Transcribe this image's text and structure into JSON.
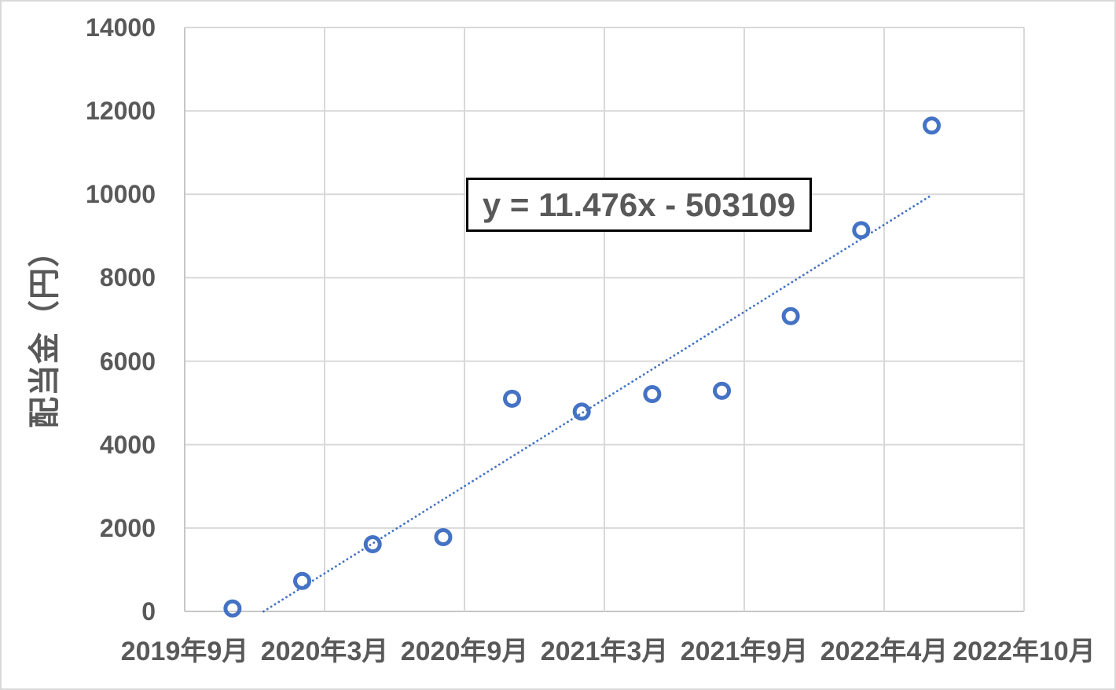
{
  "chart_data": {
    "type": "scatter",
    "title": "",
    "xlabel": "",
    "ylabel": "配当金（円）",
    "ylim": [
      0,
      14000
    ],
    "y_ticks": [
      0,
      2000,
      4000,
      6000,
      8000,
      10000,
      12000,
      14000
    ],
    "x_categories": [
      "2019年9月",
      "2020年3月",
      "2020年9月",
      "2021年3月",
      "2021年9月",
      "2022年4月",
      "2022年10月"
    ],
    "grid": true,
    "legend": "none",
    "points": [
      {
        "date": "2019年11月",
        "x_frac": 0.057,
        "value": 70
      },
      {
        "date": "2020年2月",
        "x_frac": 0.14,
        "value": 730
      },
      {
        "date": "2020年5月",
        "x_frac": 0.224,
        "value": 1610
      },
      {
        "date": "2020年8月",
        "x_frac": 0.308,
        "value": 1780
      },
      {
        "date": "2020年11月",
        "x_frac": 0.39,
        "value": 5100
      },
      {
        "date": "2021年2月",
        "x_frac": 0.473,
        "value": 4790
      },
      {
        "date": "2021年5月",
        "x_frac": 0.557,
        "value": 5210
      },
      {
        "date": "2021年8月",
        "x_frac": 0.64,
        "value": 5290
      },
      {
        "date": "2021年11月",
        "x_frac": 0.722,
        "value": 7080
      },
      {
        "date": "2022年2月",
        "x_frac": 0.806,
        "value": 9140
      },
      {
        "date": "2022年5月",
        "x_frac": 0.89,
        "value": 11650
      }
    ],
    "trendline": {
      "equation": "y = 11.476x - 503109",
      "slope": 11.476,
      "intercept": -503109,
      "style": "dotted",
      "x1_frac": 0.094,
      "y1": 0,
      "x2_frac": 0.889,
      "y2": 9970
    },
    "colors": {
      "marker": "#4472C4",
      "trendline": "#4472C4",
      "text": "#595959",
      "gridline": "#D9D9D9",
      "axis_line": "#C6C6C6",
      "equation_border": "#000000",
      "equation_bg": "#FFFFFF",
      "background": "#FFFFFF"
    }
  }
}
